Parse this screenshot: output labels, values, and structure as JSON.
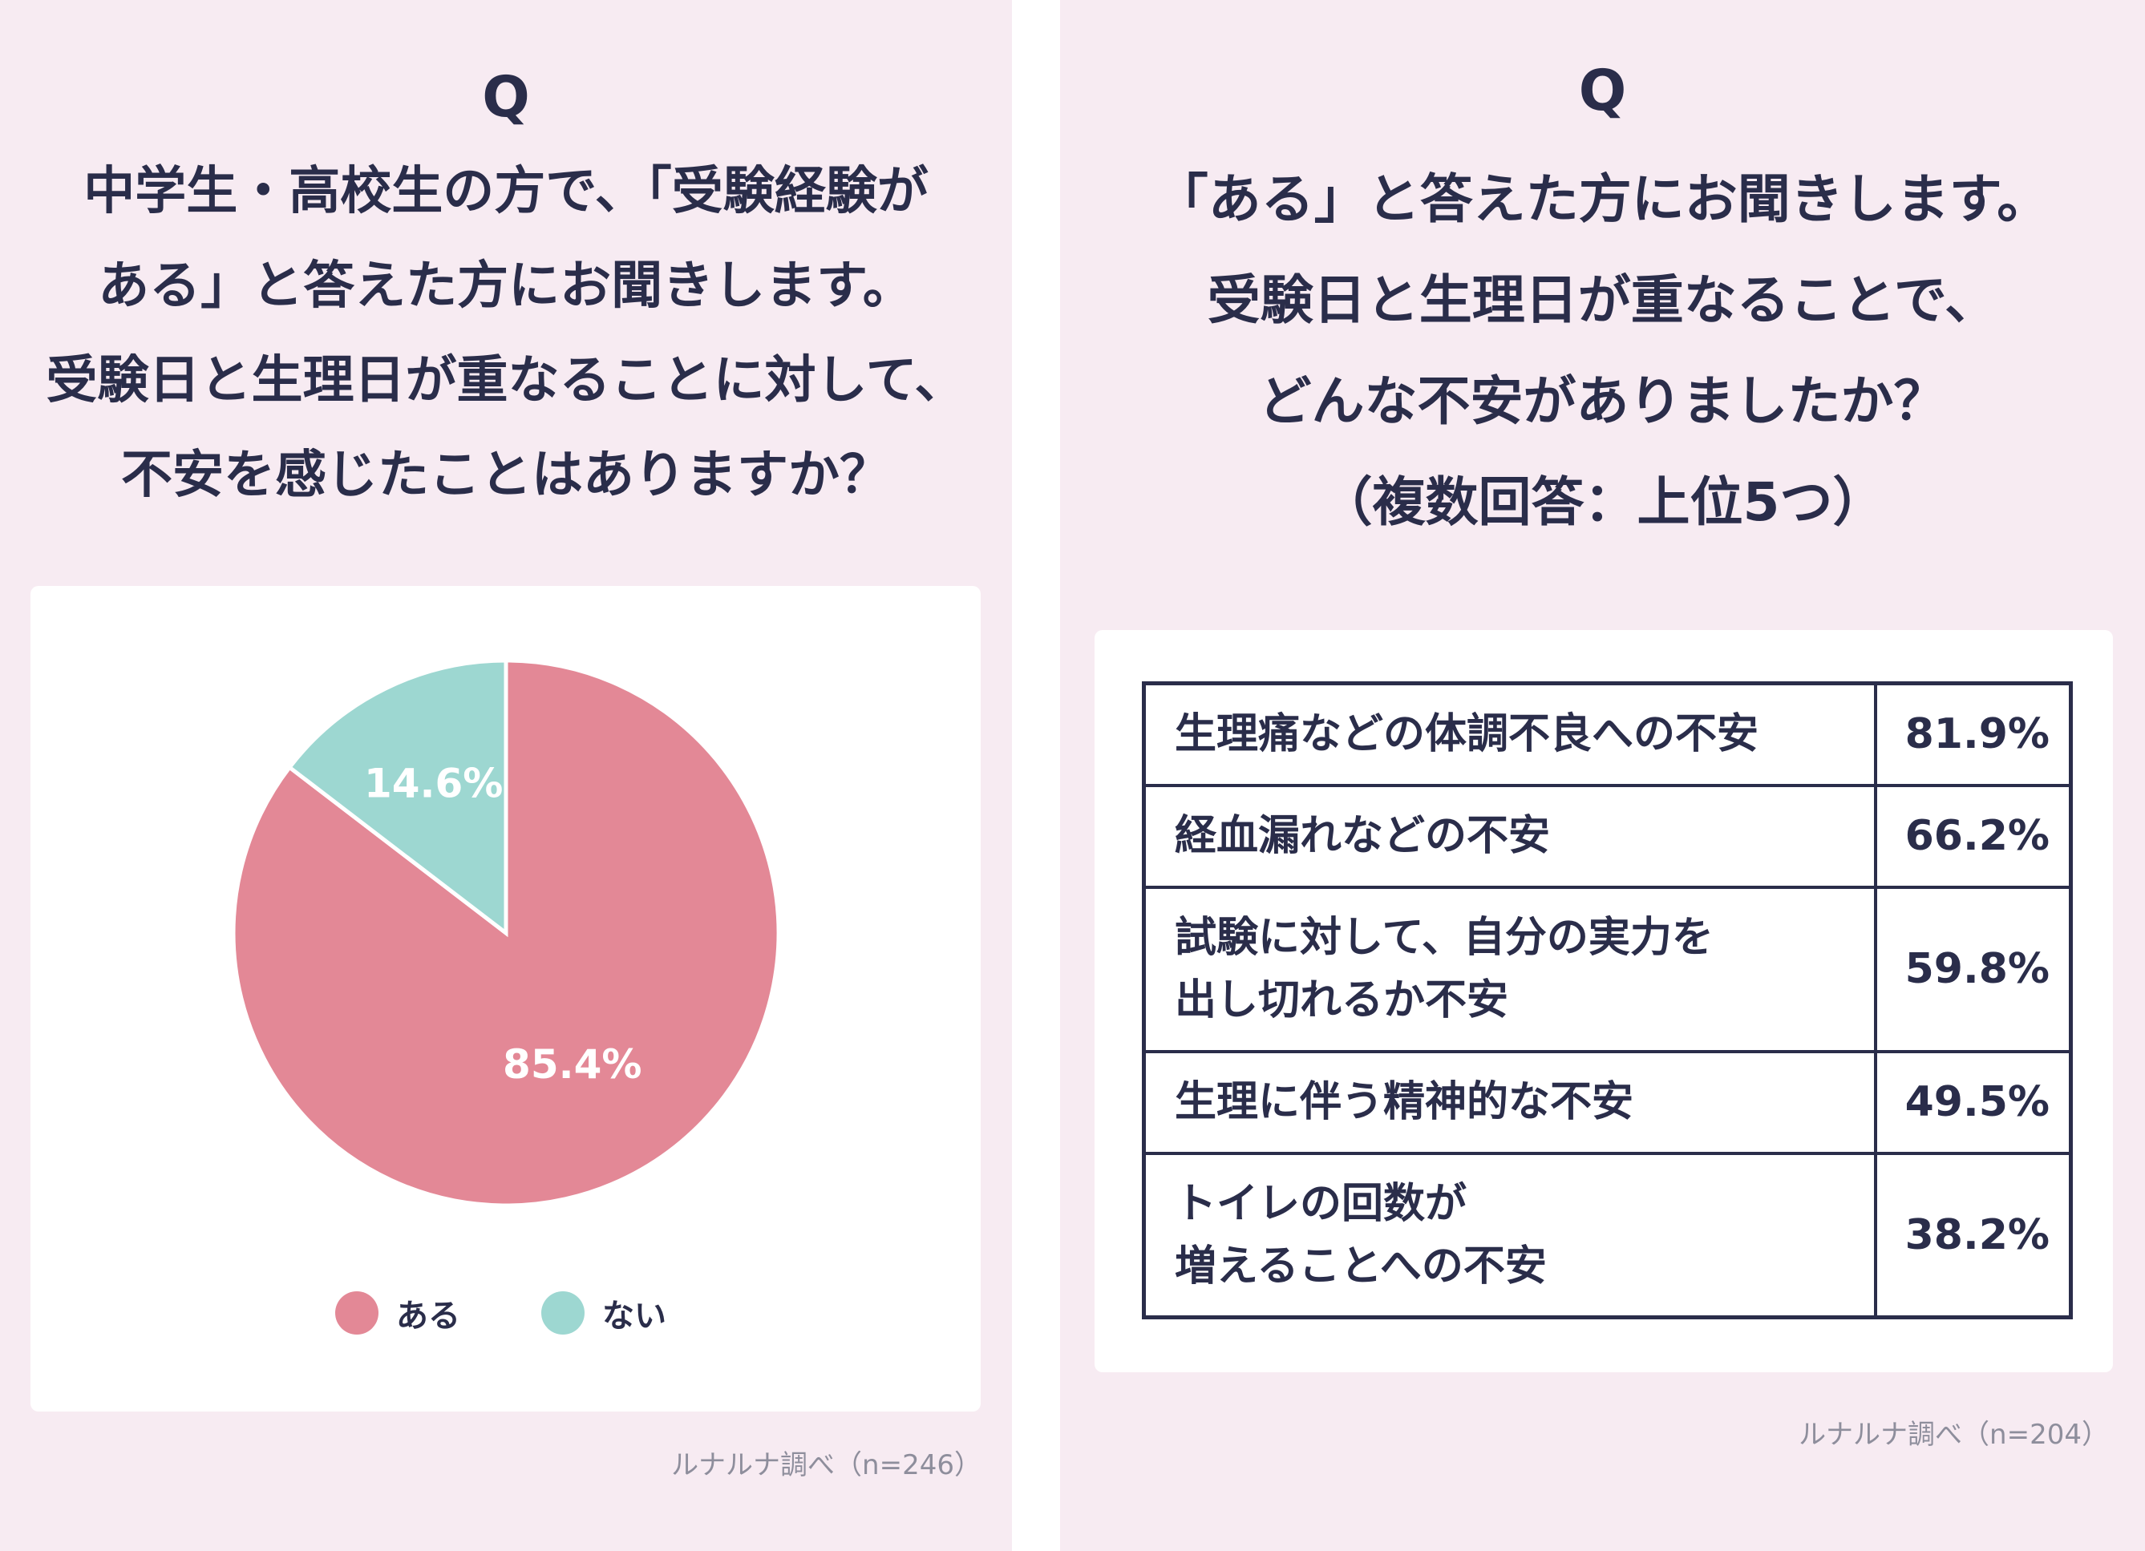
{
  "left_panel": {
    "q_mark": "Q",
    "question_lines": [
      "中学生・高校生の方で、「受験経験が",
      "ある」と答えた方にお聞きします。",
      "受験日と生理日が重なることに対して、",
      "不安を感じたことはありますか？"
    ],
    "legend": [
      {
        "label": "ある",
        "color": "#e38896"
      },
      {
        "label": "ない",
        "color": "#9dd7d1"
      }
    ],
    "source": "ルナルナ調べ（n=246）"
  },
  "right_panel": {
    "q_mark": "Q",
    "question_lines": [
      "「ある」と答えた方にお聞きします。",
      "受験日と生理日が重なることで、",
      "どんな不安がありましたか？",
      "（複数回答：上位5つ）"
    ],
    "source": "ルナルナ調べ（n=204）"
  },
  "chart_data": [
    {
      "type": "pie",
      "slices": [
        {
          "label": "ある",
          "value": 85.4,
          "display": "85.4%",
          "color": "#e38896"
        },
        {
          "label": "ない",
          "value": 14.6,
          "display": "14.6%",
          "color": "#9dd7d1"
        }
      ],
      "start": "12 o'clock",
      "direction": "clockwise"
    },
    {
      "type": "table",
      "rows": [
        {
          "item_lines": [
            "生理痛などの体調不良への不安"
          ],
          "value": 81.9,
          "display": "81.9%"
        },
        {
          "item_lines": [
            "経血漏れなどの不安"
          ],
          "value": 66.2,
          "display": "66.2%"
        },
        {
          "item_lines": [
            "試験に対して、自分の実力を",
            "出し切れるか不安"
          ],
          "value": 59.8,
          "display": "59.8%"
        },
        {
          "item_lines": [
            "生理に伴う精神的な不安"
          ],
          "value": 49.5,
          "display": "49.5%"
        },
        {
          "item_lines": [
            "トイレの回数が",
            "増えることへの不安"
          ],
          "value": 38.2,
          "display": "38.2%"
        }
      ]
    }
  ]
}
